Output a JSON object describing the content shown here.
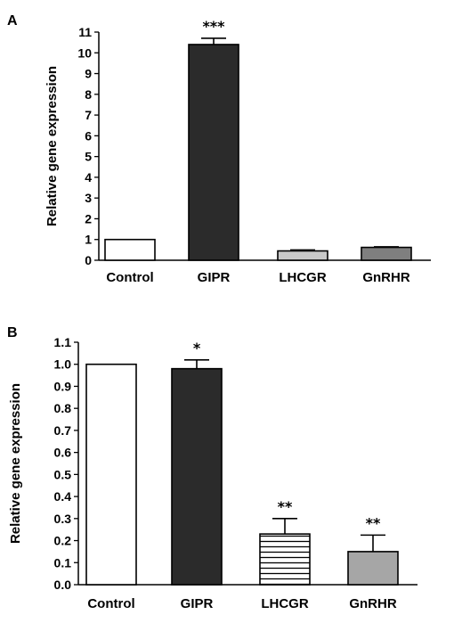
{
  "chart_data": [
    {
      "panel": "A",
      "type": "bar",
      "ylabel": "Relative gene expression",
      "ylim": [
        0,
        11
      ],
      "yticks": [
        0,
        1,
        2,
        3,
        4,
        5,
        6,
        7,
        8,
        9,
        10,
        11
      ],
      "categories": [
        "Control",
        "GIPR",
        "LHCGR",
        "GnRHR"
      ],
      "values": [
        1.0,
        10.4,
        0.45,
        0.62
      ],
      "errors": [
        0,
        0.3,
        0.05,
        0.03
      ],
      "significance": [
        "",
        "***",
        "",
        ""
      ],
      "colors": [
        "#ffffff",
        "#2b2b2b",
        "#c8c8c8",
        "#7f7f7f"
      ],
      "patterns": [
        "solid",
        "solid",
        "solid",
        "solid"
      ],
      "grid": false
    },
    {
      "panel": "B",
      "type": "bar",
      "ylabel": "Relative gene expression",
      "ylim": [
        0,
        1.1
      ],
      "yticks": [
        0.0,
        0.1,
        0.2,
        0.3,
        0.4,
        0.5,
        0.6,
        0.7,
        0.8,
        0.9,
        1.0,
        1.1
      ],
      "categories": [
        "Control",
        "GIPR",
        "LHCGR",
        "GnRHR"
      ],
      "values": [
        1.0,
        0.98,
        0.23,
        0.15
      ],
      "errors": [
        0,
        0.04,
        0.07,
        0.075
      ],
      "significance": [
        "",
        "*",
        "**",
        "**"
      ],
      "colors": [
        "#ffffff",
        "#2b2b2b",
        "#ffffff",
        "#a6a6a6"
      ],
      "patterns": [
        "solid",
        "solid",
        "horizontal-lines",
        "solid"
      ],
      "grid": false
    }
  ]
}
